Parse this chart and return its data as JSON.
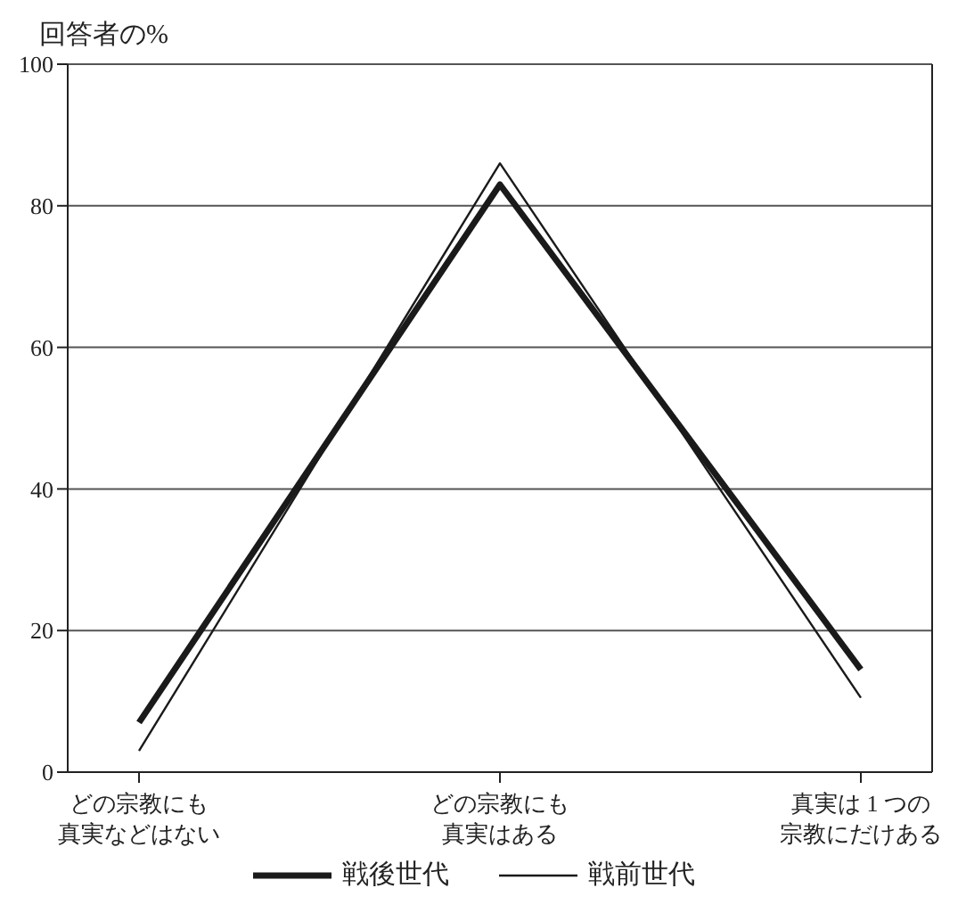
{
  "chart_data": {
    "type": "line",
    "ylabel": "回答者の%",
    "categories": [
      "どの宗教にも真実などはない",
      "どの宗教にも真実はある",
      "真実は 1 つの宗教にだけある"
    ],
    "series": [
      {
        "name": "戦後世代",
        "color": "#1a1a1a",
        "values": [
          7,
          83,
          14.5
        ]
      },
      {
        "name": "戦前世代",
        "color": "#1a1a1a",
        "values": [
          3,
          86,
          10.5
        ]
      }
    ],
    "ylim": [
      0,
      100
    ],
    "yticks": [
      0,
      20,
      40,
      60,
      80,
      100
    ],
    "grid": "y",
    "legend": "bottom",
    "marker": "none",
    "line_style": "solid"
  }
}
